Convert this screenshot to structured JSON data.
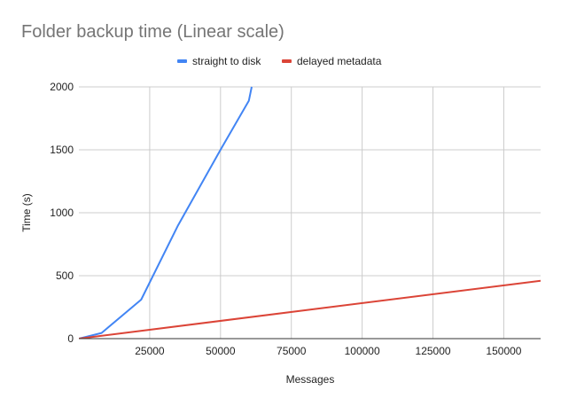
{
  "chart_data": {
    "type": "line",
    "title": "Folder backup time (Linear scale)",
    "xlabel": "Messages",
    "ylabel": "Time (s)",
    "xlim": [
      0,
      163000
    ],
    "ylim": [
      0,
      2000
    ],
    "x_ticks": [
      25000,
      50000,
      75000,
      100000,
      125000,
      150000
    ],
    "y_ticks": [
      0,
      500,
      1000,
      1500,
      2000
    ],
    "grid": true,
    "legend_position": "top",
    "series": [
      {
        "name": "straight to disk",
        "color": "#4285f4",
        "points": [
          [
            0,
            0
          ],
          [
            8000,
            45
          ],
          [
            22000,
            310
          ],
          [
            35000,
            900
          ],
          [
            50000,
            1500
          ],
          [
            60000,
            1890
          ],
          [
            61000,
            2000
          ]
        ]
      },
      {
        "name": "delayed metadata",
        "color": "#db4437",
        "points": [
          [
            0,
            0
          ],
          [
            163000,
            460
          ]
        ]
      }
    ]
  }
}
